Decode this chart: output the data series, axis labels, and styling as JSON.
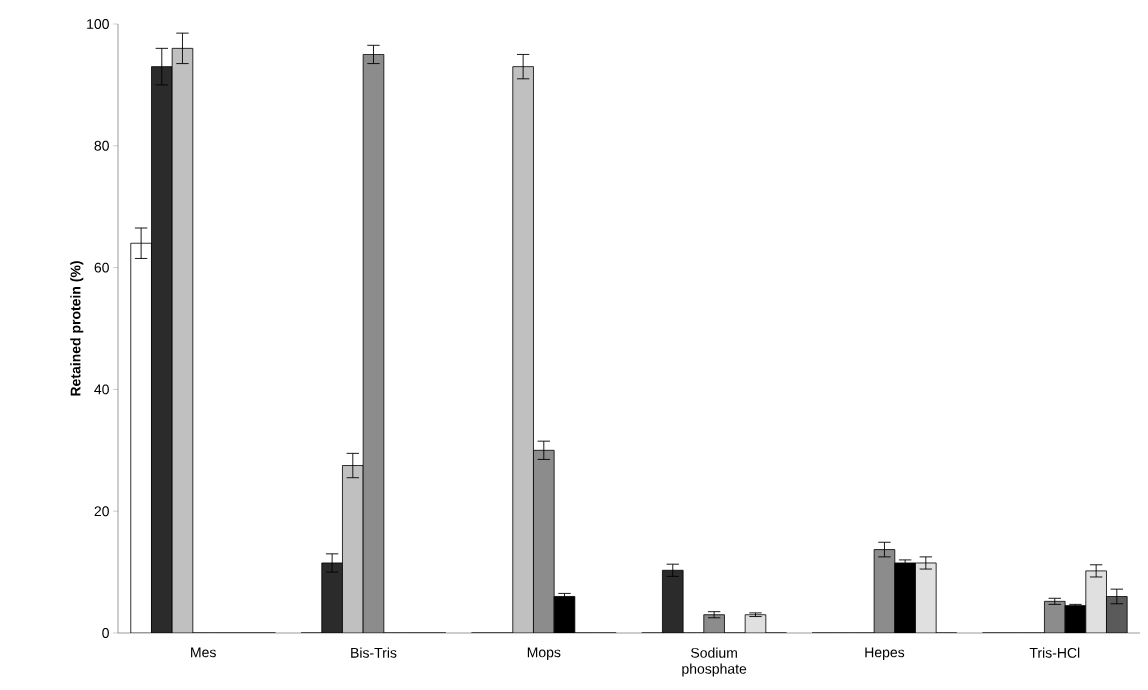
{
  "chart_data": {
    "type": "bar",
    "ylabel": "Retained protein (%)",
    "categories": [
      "Mes",
      "Bis-Tris",
      "Mops",
      "Sodium phosphate",
      "Hepes",
      "Tris-HCl"
    ],
    "series": [
      {
        "color": "#ffffff",
        "values": [
          64,
          0,
          0,
          0,
          0,
          0
        ],
        "errors": [
          2.5,
          null,
          null,
          null,
          null,
          null
        ]
      },
      {
        "color": "#2b2b2b",
        "values": [
          93,
          11.5,
          0,
          10.3,
          0,
          0
        ],
        "errors": [
          3,
          1.5,
          null,
          1,
          null,
          null
        ]
      },
      {
        "color": "#c0c0c0",
        "values": [
          96,
          27.5,
          93,
          0,
          0,
          0
        ],
        "errors": [
          2.5,
          2,
          2,
          null,
          null,
          null
        ]
      },
      {
        "color": "#8c8c8c",
        "values": [
          0,
          95,
          30,
          3,
          13.7,
          5.2
        ],
        "errors": [
          null,
          1.5,
          1.5,
          0.5,
          1.2,
          0.5
        ]
      },
      {
        "color": "#000000",
        "values": [
          0,
          0,
          6,
          0,
          11.5,
          4.5
        ],
        "errors": [
          null,
          null,
          0.5,
          null,
          0.5,
          0.2
        ]
      },
      {
        "color": "#e0e0e0",
        "values": [
          0,
          0,
          0,
          3,
          11.5,
          10.2
        ],
        "errors": [
          null,
          null,
          null,
          0.3,
          1,
          1
        ]
      },
      {
        "color": "#5a5a5a",
        "values": [
          0,
          0,
          0,
          0,
          0,
          6
        ],
        "errors": [
          null,
          null,
          null,
          null,
          null,
          1.2
        ]
      }
    ],
    "ylim": [
      0,
      100
    ],
    "yticks": [
      0,
      20,
      40,
      60,
      80,
      100
    ],
    "grid": false
  }
}
